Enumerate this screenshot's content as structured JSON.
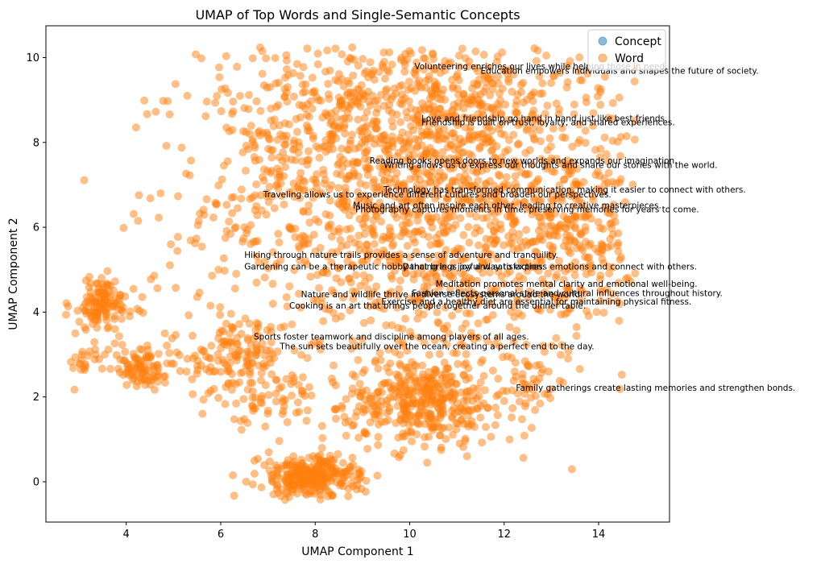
{
  "chart_data": {
    "type": "scatter",
    "title": "UMAP of Top Words and Single-Semantic Concepts",
    "xlabel": "UMAP Component 1",
    "ylabel": "UMAP Component 2",
    "xlim": [
      2.3,
      15.5
    ],
    "ylim": [
      -0.95,
      10.75
    ],
    "xticks": [
      4,
      6,
      8,
      10,
      12,
      14
    ],
    "yticks": [
      0,
      2,
      4,
      6,
      8,
      10
    ],
    "grid": false,
    "legend_position": "top-right",
    "series": [
      {
        "name": "Concept",
        "color": "#1f77b4",
        "alpha": 0.5,
        "points": []
      },
      {
        "name": "Word",
        "color": "#ff7f0e",
        "alpha": 0.5,
        "clusters": [
          {
            "cx": 10.3,
            "cy": 6.6,
            "sx": 2.3,
            "sy": 2.1,
            "n": 1500
          },
          {
            "cx": 9.6,
            "cy": 8.6,
            "sx": 1.8,
            "sy": 1.0,
            "n": 450
          },
          {
            "cx": 10.3,
            "cy": 1.9,
            "sx": 0.8,
            "sy": 0.5,
            "n": 380
          },
          {
            "cx": 7.8,
            "cy": 0.1,
            "sx": 0.5,
            "sy": 0.25,
            "n": 260
          },
          {
            "cx": 3.5,
            "cy": 4.2,
            "sx": 0.35,
            "sy": 0.3,
            "n": 130
          },
          {
            "cx": 4.4,
            "cy": 2.6,
            "sx": 0.35,
            "sy": 0.2,
            "n": 70
          },
          {
            "cx": 4.2,
            "cy": 3.0,
            "sx": 0.3,
            "sy": 0.2,
            "n": 30
          },
          {
            "cx": 13.5,
            "cy": 5.6,
            "sx": 0.6,
            "sy": 0.9,
            "n": 170
          },
          {
            "cx": 6.3,
            "cy": 3.0,
            "sx": 0.5,
            "sy": 0.4,
            "n": 120
          },
          {
            "cx": 12.5,
            "cy": 2.3,
            "sx": 0.4,
            "sy": 0.3,
            "n": 40
          },
          {
            "cx": 7.0,
            "cy": 2.0,
            "sx": 0.6,
            "sy": 0.4,
            "n": 70
          },
          {
            "cx": 3.1,
            "cy": 2.9,
            "sx": 0.2,
            "sy": 0.2,
            "n": 25
          },
          {
            "cx": 8.5,
            "cy": 0.1,
            "sx": 0.25,
            "sy": 0.2,
            "n": 40
          }
        ]
      }
    ],
    "annotations": [
      {
        "text": "Volunteering enriches our lives while helping those in need.",
        "x": 10.1,
        "y": 9.72
      },
      {
        "text": "Education empowers individuals and shapes the future of society.",
        "x": 11.5,
        "y": 9.62
      },
      {
        "text": "Love and friendship go hand in hand just like best friends.",
        "x": 10.25,
        "y": 8.5
      },
      {
        "text": "Friendship is built on trust, loyalty, and shared experiences.",
        "x": 10.25,
        "y": 8.4
      },
      {
        "text": "Reading books opens doors to new worlds and expands our imagination.",
        "x": 9.15,
        "y": 7.5
      },
      {
        "text": "Writing allows us to express our thoughts and share our stories with the world.",
        "x": 9.45,
        "y": 7.4
      },
      {
        "text": "Technology has transformed communication, making it easier to connect with others.",
        "x": 9.45,
        "y": 6.82
      },
      {
        "text": "Traveling allows us to experience different cultures and broaden our perspectives.",
        "x": 6.9,
        "y": 6.7
      },
      {
        "text": "Music and art often inspire each other, leading to creative masterpieces.",
        "x": 8.8,
        "y": 6.45
      },
      {
        "text": "Photography captures moments in time, preserving memories for years to come.",
        "x": 8.85,
        "y": 6.35
      },
      {
        "text": "Hiking through nature trails provides a sense of adventure and tranquility.",
        "x": 6.5,
        "y": 5.28
      },
      {
        "text": "Gardening can be a therapeutic hobby that brings joy and satisfaction.",
        "x": 6.5,
        "y": 5.0
      },
      {
        "text": "Dancing is a joyful way to express emotions and connect with others.",
        "x": 9.85,
        "y": 5.0
      },
      {
        "text": "Meditation promotes mental clarity and emotional well-being.",
        "x": 10.55,
        "y": 4.6
      },
      {
        "text": "Fashion reflects personal style and cultural influences throughout history.",
        "x": 10.05,
        "y": 4.38
      },
      {
        "text": "Nature and wildlife thrive in diverse ecosystems around the world.",
        "x": 7.7,
        "y": 4.35
      },
      {
        "text": "Exercise and a healthy diet are essential for maintaining physical fitness.",
        "x": 9.4,
        "y": 4.18
      },
      {
        "text": "Cooking is an art that brings people together around the dinner table.",
        "x": 7.45,
        "y": 4.08
      },
      {
        "text": "Sports foster teamwork and discipline among players of all ages.",
        "x": 6.7,
        "y": 3.35
      },
      {
        "text": "The sun sets beautifully over the ocean, creating a perfect end to the day.",
        "x": 7.25,
        "y": 3.12
      },
      {
        "text": "Family gatherings create lasting memories and strengthen bonds.",
        "x": 12.25,
        "y": 2.15
      }
    ]
  }
}
